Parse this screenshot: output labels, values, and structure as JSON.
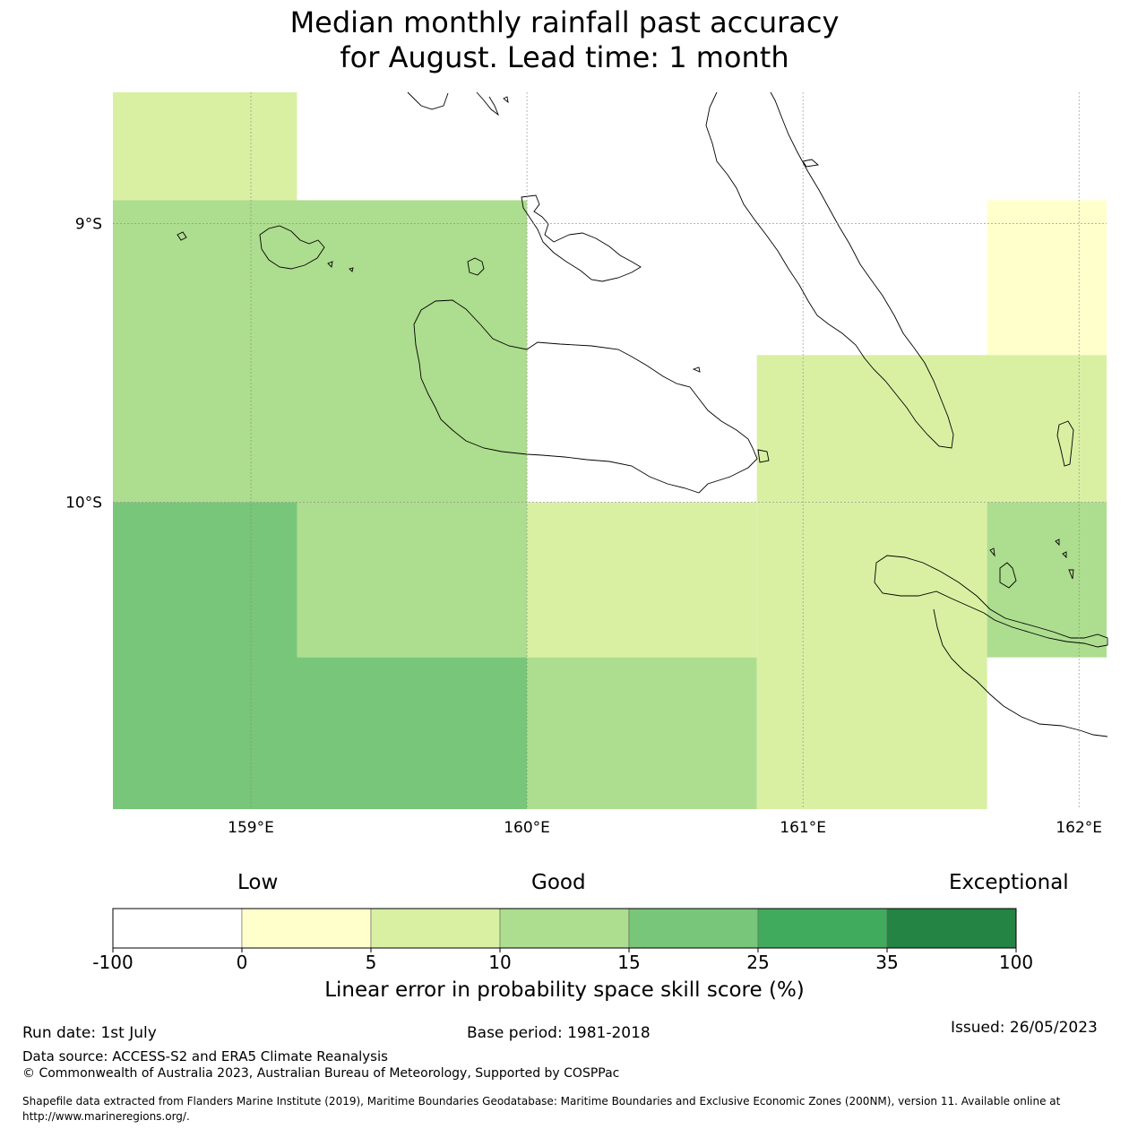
{
  "title": {
    "line1": "Median monthly rainfall past accuracy",
    "line2": "for August. Lead time: 1 month"
  },
  "map": {
    "lon_range": [
      158.5,
      162.1
    ],
    "lat_range": [
      -11.1,
      -8.53
    ],
    "lon_ticks": [
      {
        "value": 159,
        "label": "159°E"
      },
      {
        "value": 160,
        "label": "160°E"
      },
      {
        "value": 161,
        "label": "161°E"
      },
      {
        "value": 162,
        "label": "162°E"
      }
    ],
    "lat_ticks": [
      {
        "value": -9,
        "label": "9°S"
      },
      {
        "value": -10,
        "label": "10°S"
      }
    ],
    "grid_cells": [
      {
        "lon": [
          158.5,
          159.167
        ],
        "lat": [
          -8.917,
          -8.53
        ],
        "class": 2
      },
      {
        "lon": [
          158.5,
          160.0
        ],
        "lat": [
          -10.0,
          -8.917
        ],
        "class": 3
      },
      {
        "lon": [
          161.667,
          162.1
        ],
        "lat": [
          -9.472,
          -8.917
        ],
        "class": 1
      },
      {
        "lon": [
          160.833,
          162.1
        ],
        "lat": [
          -10.0,
          -9.472
        ],
        "class": 2
      },
      {
        "lon": [
          158.5,
          159.167
        ],
        "lat": [
          -11.1,
          -10.0
        ],
        "class": 4
      },
      {
        "lon": [
          159.167,
          160.0
        ],
        "lat": [
          -10.556,
          -10.0
        ],
        "class": 3
      },
      {
        "lon": [
          159.167,
          160.0
        ],
        "lat": [
          -11.1,
          -10.556
        ],
        "class": 4
      },
      {
        "lon": [
          160.0,
          160.833
        ],
        "lat": [
          -10.556,
          -10.0
        ],
        "class": 2
      },
      {
        "lon": [
          160.0,
          160.833
        ],
        "lat": [
          -11.1,
          -10.556
        ],
        "class": 3
      },
      {
        "lon": [
          160.833,
          161.667
        ],
        "lat": [
          -11.1,
          -10.0
        ],
        "class": 2
      },
      {
        "lon": [
          161.667,
          162.1
        ],
        "lat": [
          -10.556,
          -10.0
        ],
        "class": 3
      }
    ]
  },
  "colorbar": {
    "category_low": "Low",
    "category_good": "Good",
    "category_exceptional": "Exceptional",
    "ticks": [
      "-100",
      "0",
      "5",
      "10",
      "15",
      "25",
      "35",
      "100"
    ],
    "colors": [
      "#ffffff",
      "#ffffcc",
      "#d9f0a3",
      "#addd8e",
      "#78c679",
      "#41ab5d",
      "#238443"
    ],
    "label": "Linear error in probability space skill score (%)"
  },
  "footer": {
    "run_date": "Run date: 1st July",
    "base_period": "Base period: 1981-2018",
    "issued": "Issued: 26/05/2023",
    "data_source": "Data source: ACCESS-S2 and ERA5 Climate Reanalysis",
    "copyright": "© Commonwealth of Australia 2023, Australian Bureau of Meteorology, Supported by COSPPac",
    "shapefile_line1": "Shapefile data extracted from Flanders Marine Institute (2019), Maritime Boundaries Geodatabase: Maritime Boundaries and Exclusive Economic Zones (200NM), version 11. Available online at",
    "shapefile_line2": "http://www.marineregions.org/."
  }
}
